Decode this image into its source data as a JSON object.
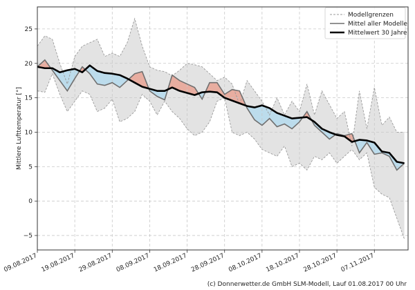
{
  "chart_data": {
    "type": "area",
    "title": "",
    "xlabel": "",
    "ylabel": "Mittlere Lufttemperatur [°]",
    "ylim": [
      -7.1,
      28.2
    ],
    "xlim_days": [
      0,
      99
    ],
    "grid": true,
    "legend_position": "top-right",
    "start_date": "09.08.2017",
    "x_ticks": [
      {
        "day": 0,
        "label": "09.08.2017"
      },
      {
        "day": 10,
        "label": "19.08.2017"
      },
      {
        "day": 20,
        "label": "29.08.2017"
      },
      {
        "day": 30,
        "label": "08.09.2017"
      },
      {
        "day": 40,
        "label": "18.09.2017"
      },
      {
        "day": 50,
        "label": "28.09.2017"
      },
      {
        "day": 60,
        "label": "08.10.2017"
      },
      {
        "day": 70,
        "label": "18.10.2017"
      },
      {
        "day": 80,
        "label": "28.10.2017"
      },
      {
        "day": 90,
        "label": "07.11.2017"
      }
    ],
    "y_ticks": [
      -5,
      0,
      5,
      10,
      15,
      20,
      25
    ],
    "x": [
      0,
      2,
      4,
      6,
      8,
      10,
      12,
      14,
      16,
      18,
      20,
      22,
      24,
      26,
      28,
      30,
      32,
      34,
      36,
      38,
      40,
      42,
      44,
      46,
      48,
      50,
      52,
      54,
      56,
      58,
      60,
      62,
      64,
      66,
      68,
      70,
      72,
      74,
      76,
      78,
      80,
      82,
      84,
      86,
      88,
      90,
      92,
      94,
      96,
      98
    ],
    "series": [
      {
        "name": "Modellgrenzen (oben)",
        "key": "upper",
        "style": "dashed",
        "values": [
          22.5,
          24.0,
          23.5,
          20.0,
          17.0,
          21.0,
          22.5,
          23.0,
          23.5,
          21.0,
          21.5,
          21.0,
          23.0,
          26.5,
          22.5,
          19.5,
          19.0,
          18.8,
          18.2,
          19.0,
          20.0,
          19.8,
          19.5,
          18.5,
          17.5,
          18.0,
          17.0,
          14.0,
          17.5,
          16.0,
          14.5,
          12.5,
          15.0,
          12.5,
          14.5,
          13.0,
          17.0,
          12.5,
          16.0,
          14.0,
          12.0,
          13.0,
          8.0,
          16.0,
          10.5,
          16.5,
          11.0,
          12.2,
          10.0,
          10.0
        ]
      },
      {
        "name": "Modellgrenzen (unten)",
        "key": "lower",
        "style": "dashed",
        "values": [
          16.0,
          15.8,
          18.5,
          15.5,
          13.0,
          14.5,
          16.0,
          15.5,
          13.0,
          13.5,
          14.8,
          11.5,
          12.0,
          13.0,
          15.5,
          14.5,
          12.5,
          14.5,
          13.0,
          12.0,
          10.5,
          9.5,
          10.0,
          11.5,
          14.5,
          15.0,
          10.0,
          9.5,
          10.0,
          9.0,
          7.5,
          7.0,
          6.5,
          8.0,
          5.0,
          5.5,
          4.5,
          6.5,
          6.0,
          7.0,
          5.5,
          6.5,
          7.5,
          6.0,
          7.0,
          2.0,
          1.0,
          0.5,
          -2.5,
          -5.5
        ]
      },
      {
        "name": "Mittel aller Modelle",
        "key": "model_mean",
        "style": "solid-gray",
        "values": [
          19.5,
          20.5,
          19.0,
          17.5,
          16.0,
          17.8,
          19.5,
          18.5,
          17.0,
          16.8,
          17.2,
          16.5,
          17.5,
          18.5,
          18.8,
          16.0,
          15.2,
          14.7,
          18.3,
          17.5,
          17.0,
          16.5,
          14.8,
          17.2,
          17.2,
          15.5,
          16.2,
          16.0,
          13.5,
          11.8,
          11.0,
          12.0,
          10.8,
          11.2,
          10.5,
          11.5,
          13.0,
          11.0,
          10.0,
          9.0,
          9.8,
          9.5,
          9.8,
          7.0,
          8.5,
          6.8,
          7.0,
          6.5,
          4.5,
          5.5
        ]
      },
      {
        "name": "Mittelwert 30 Jahre",
        "key": "clim_mean",
        "style": "solid-black",
        "values": [
          19.5,
          19.3,
          19.3,
          18.7,
          19.0,
          19.2,
          18.7,
          19.7,
          18.9,
          18.6,
          18.5,
          18.3,
          17.8,
          17.2,
          16.6,
          16.3,
          16.0,
          16.0,
          16.5,
          16.0,
          15.7,
          15.4,
          15.8,
          15.9,
          15.8,
          15.0,
          14.6,
          14.2,
          13.8,
          13.6,
          13.9,
          13.5,
          12.8,
          12.4,
          12.0,
          12.1,
          12.2,
          11.5,
          10.5,
          10.0,
          9.6,
          9.4,
          8.6,
          8.9,
          8.8,
          8.5,
          7.2,
          7.0,
          5.7,
          5.5
        ]
      }
    ],
    "legend": [
      {
        "label": "Modellgrenzen",
        "style": "dashed"
      },
      {
        "label": "Mittel aller Modelle",
        "style": "solid-gray"
      },
      {
        "label": "Mittelwert 30 Jahre",
        "style": "solid-black"
      }
    ],
    "colors": {
      "band_fill": "#e3e3e3",
      "band_edge": "#9a9a9a",
      "model_line": "#6f6f6f",
      "clim_line": "#000000",
      "warm_fill": "#e8ada0",
      "cold_fill": "#bcdcec",
      "grid": "#c8c8c8"
    }
  },
  "footer": "(c) Donnerwetter.de GmbH SLM-Modell, Lauf 01.08.2017 00 Uhr"
}
